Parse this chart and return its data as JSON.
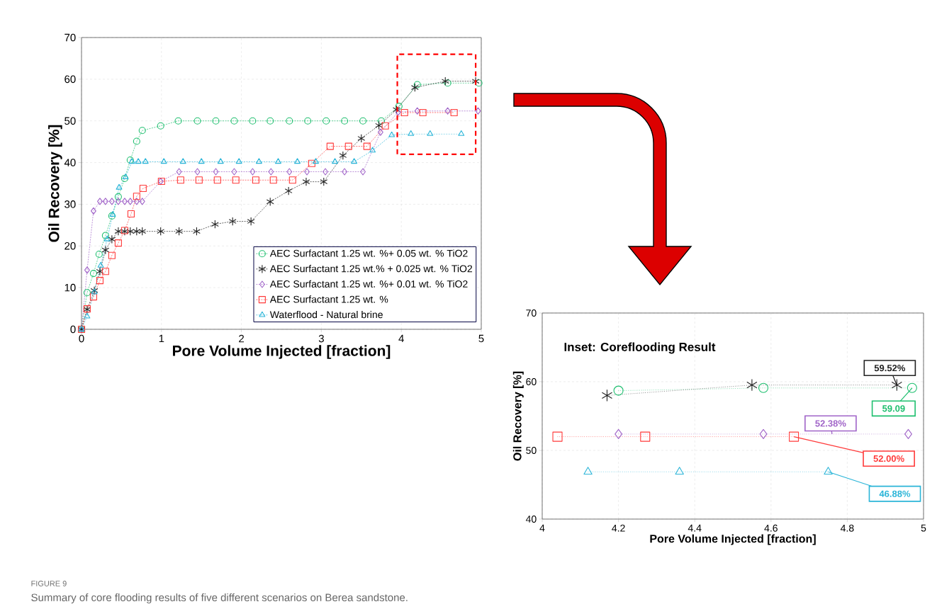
{
  "chart_data": [
    {
      "type": "line",
      "xlabel": "Pore Volume Injected [fraction]",
      "ylabel": "Oil Recovery [%]",
      "xlim": [
        0,
        5
      ],
      "ylim": [
        0,
        70
      ],
      "xticks": [
        0,
        1,
        2,
        3,
        4,
        5
      ],
      "yticks": [
        0,
        10,
        20,
        30,
        40,
        50,
        60,
        70
      ],
      "grid": true,
      "legend": "bottom right",
      "line_style": "dashed",
      "series": [
        {
          "name": "AEC Surfactant 1.25 wt. %+ 0.05 wt. % TiO2",
          "color": "#1fbf6f",
          "marker": "circle",
          "x": [
            0,
            0.07,
            0.15,
            0.22,
            0.3,
            0.38,
            0.46,
            0.54,
            0.61,
            0.69,
            0.76,
            0.99,
            1.21,
            1.45,
            1.68,
            1.91,
            2.14,
            2.36,
            2.6,
            2.83,
            3.06,
            3.29,
            3.52,
            3.75,
            3.97,
            4.2,
            4.58,
            4.97
          ],
          "values": [
            0,
            8.8,
            13.4,
            18.0,
            22.5,
            27.2,
            31.8,
            36.2,
            40.6,
            45.1,
            47.7,
            48.8,
            50,
            50,
            50,
            50,
            50,
            50,
            50,
            50,
            50,
            50,
            50,
            50,
            53.5,
            58.7,
            59.09,
            59.09
          ]
        },
        {
          "name": "AEC Surfactant 1.25 wt.% + 0.025 wt. % TiO2",
          "color": "#222222",
          "marker": "cross",
          "x": [
            0,
            0.07,
            0.16,
            0.23,
            0.3,
            0.38,
            0.46,
            0.54,
            0.61,
            0.69,
            0.76,
            0.99,
            1.22,
            1.44,
            1.67,
            1.89,
            2.12,
            2.36,
            2.59,
            2.81,
            3.03,
            3.27,
            3.5,
            3.72,
            3.94,
            4.17,
            4.55,
            4.93
          ],
          "values": [
            0,
            4.8,
            9.3,
            13.9,
            19.0,
            21.6,
            23.5,
            23.5,
            23.5,
            23.5,
            23.5,
            23.5,
            23.5,
            23.5,
            25.2,
            25.9,
            25.9,
            30.6,
            33.2,
            35.4,
            35.4,
            41.7,
            45.8,
            48.9,
            52.7,
            58.0,
            59.52,
            59.52
          ]
        },
        {
          "name": "AEC Surfactant 1.25 wt. %+ 0.01 wt. % TiO2",
          "color": "#a064c8",
          "marker": "diamond",
          "x": [
            0,
            0.07,
            0.15,
            0.23,
            0.3,
            0.38,
            0.46,
            0.54,
            0.61,
            0.69,
            0.76,
            0.99,
            1.22,
            1.45,
            1.68,
            1.91,
            2.14,
            2.37,
            2.6,
            2.82,
            3.05,
            3.29,
            3.52,
            3.74,
            3.96,
            4.2,
            4.58,
            4.96
          ],
          "values": [
            0,
            14.2,
            28.4,
            30.7,
            30.7,
            30.7,
            30.7,
            30.7,
            30.7,
            30.7,
            30.7,
            35.5,
            37.8,
            37.8,
            37.8,
            37.8,
            37.8,
            37.8,
            37.8,
            37.8,
            37.8,
            37.8,
            37.8,
            47.3,
            52.1,
            52.38,
            52.38,
            52.38
          ]
        },
        {
          "name": "AEC Surfactant 1.25 wt. %",
          "color": "#ff3b3b",
          "marker": "square",
          "x": [
            0,
            0.07,
            0.15,
            0.23,
            0.3,
            0.38,
            0.46,
            0.54,
            0.62,
            0.69,
            0.77,
            1.0,
            1.24,
            1.47,
            1.7,
            1.93,
            2.18,
            2.4,
            2.64,
            2.88,
            3.11,
            3.34,
            3.57,
            3.8,
            4.04,
            4.27,
            4.66
          ],
          "values": [
            0,
            4.9,
            7.8,
            11.7,
            13.9,
            17.7,
            20.7,
            23.7,
            27.7,
            31.9,
            33.8,
            35.5,
            35.8,
            35.8,
            35.8,
            35.8,
            35.8,
            35.8,
            35.8,
            39.8,
            43.9,
            43.9,
            43.9,
            48.8,
            52.0,
            52.0,
            52.0
          ]
        },
        {
          "name": "Waterflood - Natural brine",
          "color": "#2bb5d8",
          "marker": "triangle",
          "x": [
            0,
            0.07,
            0.16,
            0.24,
            0.32,
            0.39,
            0.47,
            0.55,
            0.63,
            0.71,
            0.8,
            1.03,
            1.27,
            1.5,
            1.74,
            1.97,
            2.22,
            2.46,
            2.7,
            2.93,
            3.17,
            3.41,
            3.64,
            3.88,
            4.12,
            4.36,
            4.75
          ],
          "values": [
            0,
            3.1,
            8.9,
            15.3,
            21.6,
            27.5,
            34.0,
            36.5,
            40.2,
            40.2,
            40.2,
            40.2,
            40.2,
            40.2,
            40.2,
            40.2,
            40.2,
            40.2,
            40.2,
            40.2,
            40.2,
            40.2,
            42.9,
            46.6,
            46.88,
            46.88,
            46.88
          ]
        }
      ],
      "annotations": [
        "FIGURE 9",
        "Summary of core flooding results of five different scenarios on Berea sandstone."
      ]
    },
    {
      "type": "line",
      "xlabel": "Pore Volume Injected [fraction]",
      "ylabel": "Oil Recovery [%]",
      "xlim": [
        4,
        5
      ],
      "ylim": [
        40,
        70
      ],
      "xticks": [
        4,
        4.2,
        4.4,
        4.6,
        4.8,
        5
      ],
      "yticks": [
        40,
        50,
        60,
        70
      ],
      "grid": true,
      "line_style": "dotted",
      "series": [
        {
          "color": "#1fbf6f",
          "marker": "circle",
          "x": [
            4.2,
            4.58,
            4.97
          ],
          "values": [
            58.7,
            59.09,
            59.09
          ]
        },
        {
          "color": "#222222",
          "marker": "cross",
          "x": [
            4.17,
            4.55,
            4.93
          ],
          "values": [
            58.0,
            59.52,
            59.52
          ]
        },
        {
          "color": "#a064c8",
          "marker": "diamond",
          "x": [
            4.2,
            4.58,
            4.96
          ],
          "values": [
            52.38,
            52.38,
            52.38
          ]
        },
        {
          "color": "#ff3b3b",
          "marker": "square",
          "x": [
            4.04,
            4.27,
            4.66
          ],
          "values": [
            52.0,
            52.0,
            52.0
          ]
        },
        {
          "color": "#2bb5d8",
          "marker": "triangle",
          "x": [
            4.12,
            4.36,
            4.75
          ],
          "values": [
            46.88,
            46.88,
            46.88
          ]
        }
      ],
      "annotations": [
        "Inset: Coreflooding Result",
        {
          "text": "59.52%",
          "x": 4.93,
          "y": 59.52
        },
        {
          "text": "59.09",
          "x": 4.97,
          "y": 59.09
        },
        {
          "text": "52.38%",
          "x": 4.76,
          "y": 52.38
        },
        {
          "text": "52.00%",
          "x": 4.66,
          "y": 52.0
        },
        {
          "text": "46.88%",
          "x": 4.75,
          "y": 46.88
        }
      ]
    }
  ]
}
